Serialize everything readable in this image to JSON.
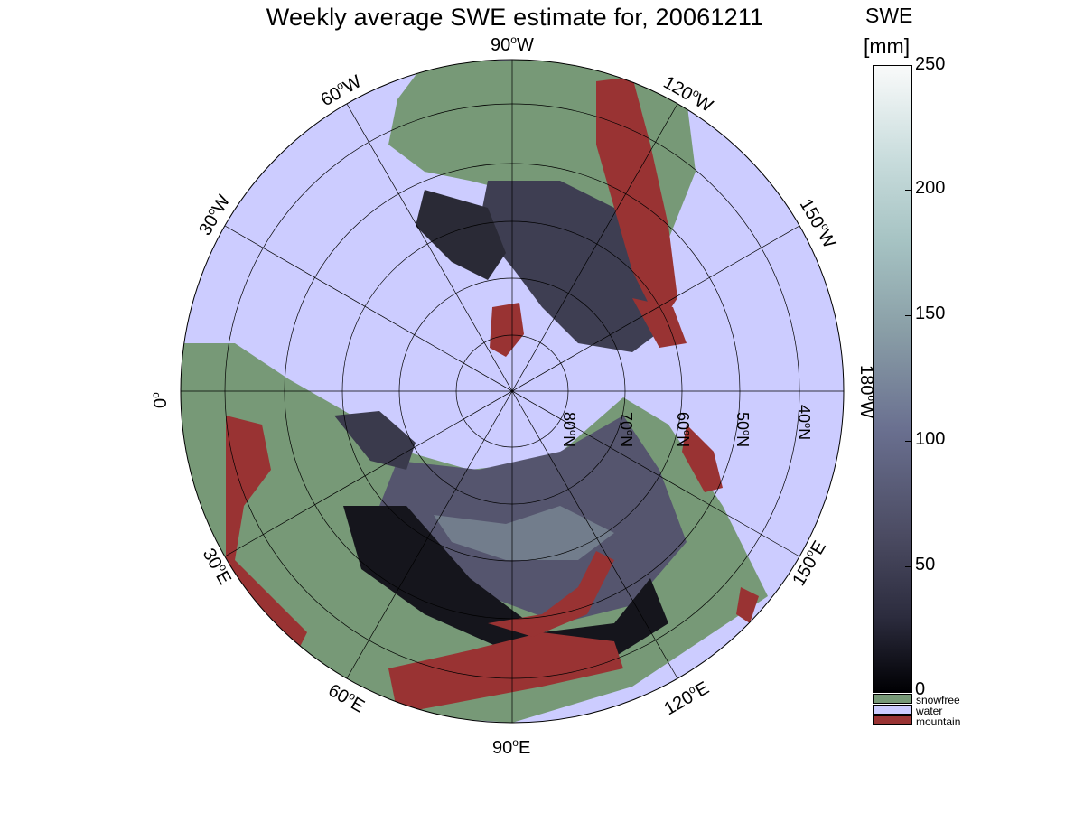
{
  "title": "Weekly average SWE estimate for, 20061211",
  "colorbar": {
    "title_line1": "SWE",
    "title_line2": "[mm]",
    "ticks": [
      "0",
      "50",
      "100",
      "150",
      "200",
      "250"
    ],
    "range": [
      0,
      250
    ]
  },
  "legend": {
    "snowfree": "snowfree",
    "water": "water",
    "mountain": "mountain"
  },
  "longitude_labels": {
    "lon_90W": "90",
    "lon_120W": "120",
    "lon_150W": "150",
    "lon_180W": "180",
    "lon_150E": "150",
    "lon_120E": "120",
    "lon_90E": "90",
    "lon_60E": "60",
    "lon_30E": "30",
    "lon_0": "0",
    "lon_30W": "30",
    "lon_60W": "60",
    "suffix_W": "W",
    "suffix_E": "E",
    "degree": "o"
  },
  "latitude_labels": {
    "lat_80": "80",
    "lat_70": "70",
    "lat_60": "60",
    "lat_50": "50",
    "lat_40": "40",
    "suffix": "N",
    "degree": "o"
  },
  "colors": {
    "water": "#ccccff",
    "snowfree": "#779977",
    "mountain": "#993333",
    "swe_low": "#1a1a24",
    "swe_mid": "#5c5c78",
    "swe_high": "#8fa5a5"
  }
}
